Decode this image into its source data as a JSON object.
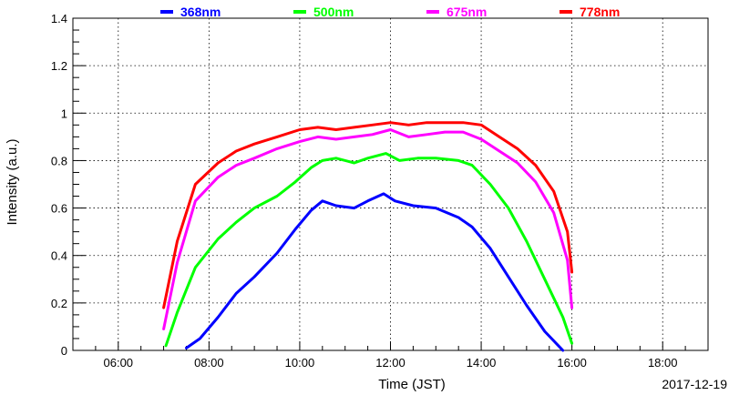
{
  "chart_data": {
    "type": "line",
    "xlabel": "Time (JST)",
    "ylabel": "Intensity (a.u.)",
    "date_label": "2017-12-19",
    "xlim": [
      5.0,
      19.0
    ],
    "ylim": [
      0,
      1.4
    ],
    "x_ticks": [
      6,
      8,
      10,
      12,
      14,
      16,
      18
    ],
    "x_tick_labels": [
      "06:00",
      "08:00",
      "10:00",
      "12:00",
      "14:00",
      "16:00",
      "18:00"
    ],
    "y_ticks": [
      0,
      0.2,
      0.4,
      0.6,
      0.8,
      1.0,
      1.2,
      1.4
    ],
    "y_tick_labels": [
      "0",
      "0.2",
      "0.4",
      "0.6",
      "0.8",
      "1",
      "1.2",
      "1.4"
    ],
    "grid": true,
    "legend_position": "top",
    "series": [
      {
        "name": "368nm",
        "color": "#0000ff",
        "x": [
          7.5,
          7.8,
          8.2,
          8.6,
          9.0,
          9.5,
          9.9,
          10.25,
          10.5,
          10.8,
          11.2,
          11.5,
          11.85,
          12.1,
          12.5,
          13.0,
          13.5,
          13.8,
          14.2,
          14.6,
          15.0,
          15.4,
          15.8
        ],
        "y": [
          0.01,
          0.05,
          0.14,
          0.24,
          0.31,
          0.41,
          0.51,
          0.59,
          0.63,
          0.61,
          0.6,
          0.63,
          0.66,
          0.63,
          0.61,
          0.6,
          0.56,
          0.52,
          0.43,
          0.31,
          0.19,
          0.08,
          0.0
        ]
      },
      {
        "name": "500nm",
        "color": "#00ff00",
        "x": [
          7.05,
          7.3,
          7.7,
          8.2,
          8.6,
          9.0,
          9.5,
          9.9,
          10.25,
          10.5,
          10.8,
          11.2,
          11.5,
          11.9,
          12.2,
          12.6,
          13.0,
          13.5,
          13.8,
          14.2,
          14.6,
          15.0,
          15.4,
          15.8,
          16.0
        ],
        "y": [
          0.02,
          0.16,
          0.35,
          0.47,
          0.54,
          0.6,
          0.65,
          0.71,
          0.77,
          0.8,
          0.81,
          0.79,
          0.81,
          0.83,
          0.8,
          0.81,
          0.81,
          0.8,
          0.78,
          0.7,
          0.6,
          0.46,
          0.3,
          0.14,
          0.03
        ]
      },
      {
        "name": "675nm",
        "color": "#ff00ff",
        "x": [
          7.0,
          7.3,
          7.7,
          8.2,
          8.6,
          9.0,
          9.5,
          10.0,
          10.4,
          10.8,
          11.2,
          11.6,
          12.0,
          12.4,
          12.8,
          13.2,
          13.6,
          14.0,
          14.4,
          14.8,
          15.2,
          15.6,
          15.9,
          16.0
        ],
        "y": [
          0.09,
          0.37,
          0.63,
          0.73,
          0.78,
          0.81,
          0.85,
          0.88,
          0.9,
          0.89,
          0.9,
          0.91,
          0.93,
          0.9,
          0.91,
          0.92,
          0.92,
          0.89,
          0.84,
          0.79,
          0.71,
          0.58,
          0.38,
          0.18
        ]
      },
      {
        "name": "778nm",
        "color": "#ff0000",
        "x": [
          7.0,
          7.3,
          7.7,
          8.2,
          8.6,
          9.0,
          9.5,
          10.0,
          10.4,
          10.8,
          11.2,
          11.6,
          12.0,
          12.4,
          12.8,
          13.2,
          13.6,
          14.0,
          14.4,
          14.8,
          15.2,
          15.6,
          15.9,
          16.0
        ],
        "y": [
          0.18,
          0.46,
          0.7,
          0.79,
          0.84,
          0.87,
          0.9,
          0.93,
          0.94,
          0.93,
          0.94,
          0.95,
          0.96,
          0.95,
          0.96,
          0.96,
          0.96,
          0.95,
          0.9,
          0.85,
          0.78,
          0.67,
          0.5,
          0.33
        ]
      }
    ]
  }
}
